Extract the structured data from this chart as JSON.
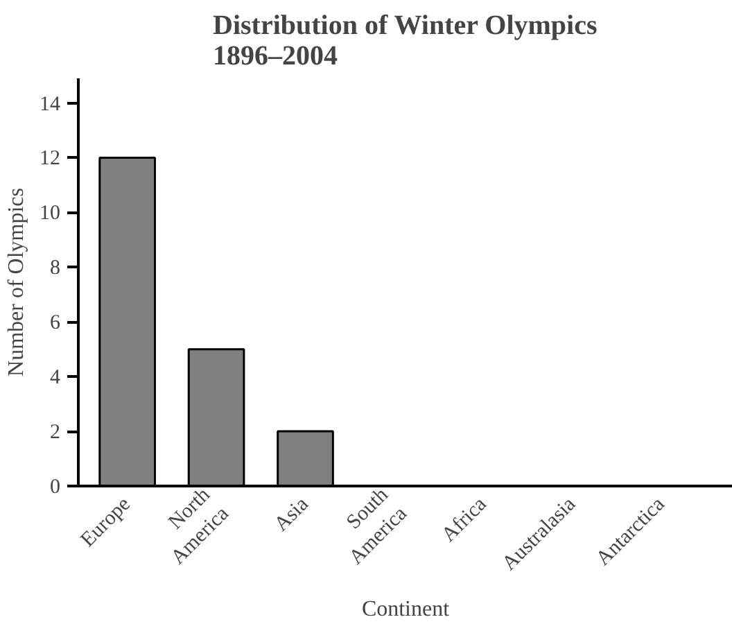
{
  "chart_data": {
    "type": "bar",
    "title": "Distribution of Winter Olympics\n1896–2004",
    "xlabel": "Continent",
    "ylabel": "Number of Olympics",
    "categories": [
      "Europe",
      "North America",
      "Asia",
      "South America",
      "Africa",
      "Australasia",
      "Antarctica"
    ],
    "values": [
      12,
      5,
      2,
      0,
      0,
      0,
      0
    ],
    "color": "#808080",
    "ylim": [
      0,
      14.9
    ],
    "yticks": [
      0,
      2,
      4,
      6,
      8,
      10,
      12,
      14
    ],
    "grid": false
  }
}
